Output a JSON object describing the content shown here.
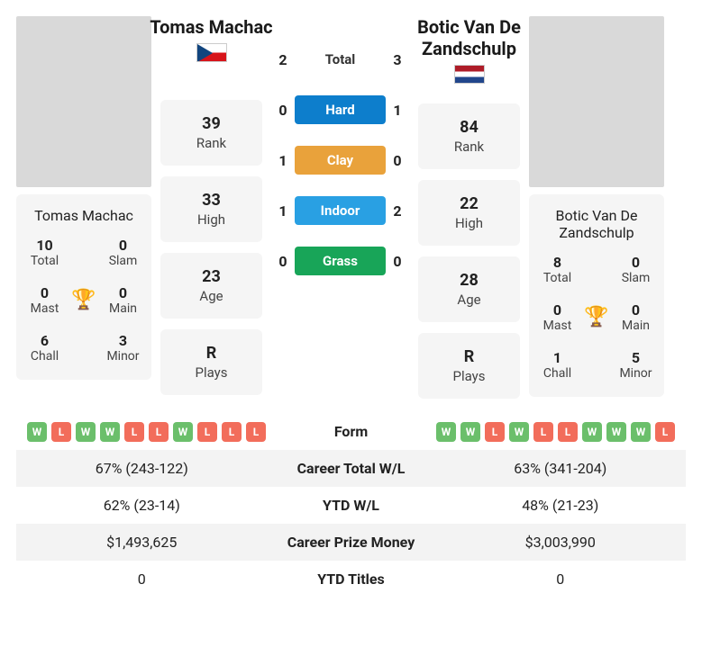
{
  "playerA": {
    "name": "Tomas Machac",
    "flag": "cz",
    "rank": "39",
    "high": "33",
    "age": "23",
    "plays": "R",
    "titles": {
      "total": "10",
      "slam": "0",
      "mast": "0",
      "main": "0",
      "chall": "6",
      "minor": "3"
    }
  },
  "playerB": {
    "name": "Botic Van De Zandschulp",
    "flag": "nl",
    "rank": "84",
    "high": "22",
    "age": "28",
    "plays": "R",
    "titles": {
      "total": "8",
      "slam": "0",
      "mast": "0",
      "main": "0",
      "chall": "1",
      "minor": "5"
    }
  },
  "labels": {
    "rank": "Rank",
    "high": "High",
    "age": "Age",
    "plays": "Plays",
    "total": "Total",
    "slam": "Slam",
    "mast": "Mast",
    "main": "Main",
    "chall": "Chall",
    "minor": "Minor"
  },
  "h2h": {
    "total": {
      "label": "Total",
      "a": "2",
      "b": "3"
    },
    "hard": {
      "label": "Hard",
      "a": "0",
      "b": "1"
    },
    "clay": {
      "label": "Clay",
      "a": "1",
      "b": "0"
    },
    "indoor": {
      "label": "Indoor",
      "a": "1",
      "b": "2"
    },
    "grass": {
      "label": "Grass",
      "a": "0",
      "b": "0"
    }
  },
  "compare": {
    "form": {
      "label": "Form",
      "a": [
        "W",
        "L",
        "W",
        "W",
        "L",
        "L",
        "W",
        "L",
        "L",
        "L"
      ],
      "b": [
        "W",
        "W",
        "L",
        "W",
        "L",
        "L",
        "W",
        "W",
        "W",
        "L"
      ]
    },
    "careerWL": {
      "label": "Career Total W/L",
      "a": "67% (243-122)",
      "b": "63% (341-204)"
    },
    "ytdWL": {
      "label": "YTD W/L",
      "a": "62% (23-14)",
      "b": "48% (21-23)"
    },
    "prize": {
      "label": "Career Prize Money",
      "a": "$1,493,625",
      "b": "$3,003,990"
    },
    "ytdTitles": {
      "label": "YTD Titles",
      "a": "0",
      "b": "0"
    }
  }
}
